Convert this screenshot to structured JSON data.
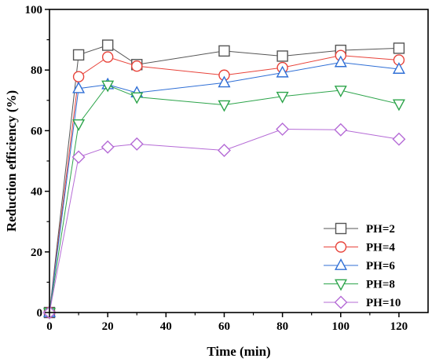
{
  "chart_data": {
    "type": "line",
    "xlabel": "Time (min)",
    "ylabel": "Reduction efficiency (%)",
    "xlim": [
      0,
      130
    ],
    "ylim": [
      0,
      100
    ],
    "xticks": [
      0,
      20,
      40,
      60,
      80,
      100,
      120
    ],
    "yticks": [
      0,
      20,
      40,
      60,
      80,
      100
    ],
    "legend_position": "bottom-right",
    "grid": false,
    "x": [
      0,
      10,
      20,
      30,
      60,
      80,
      100,
      120
    ],
    "series": [
      {
        "name": "PH=2",
        "marker": "square",
        "color": "#555555",
        "values": [
          0,
          85.0,
          88.2,
          81.8,
          86.3,
          84.6,
          86.5,
          87.2
        ]
      },
      {
        "name": "PH=4",
        "marker": "circle",
        "color": "#e8433a",
        "values": [
          0,
          77.8,
          84.3,
          81.3,
          78.3,
          80.8,
          84.8,
          83.3
        ]
      },
      {
        "name": "PH=6",
        "marker": "triangle-up",
        "color": "#2f6fd6",
        "values": [
          0,
          73.9,
          75.2,
          72.5,
          75.8,
          79.1,
          82.5,
          80.3
        ]
      },
      {
        "name": "PH=8",
        "marker": "triangle-down",
        "color": "#2ca44a",
        "values": [
          0,
          62.2,
          75.0,
          71.1,
          68.5,
          71.3,
          73.3,
          68.8
        ]
      },
      {
        "name": "PH=10",
        "marker": "diamond",
        "color": "#b56bd6",
        "values": [
          0,
          51.3,
          54.6,
          55.6,
          53.5,
          60.5,
          60.3,
          57.2
        ]
      }
    ]
  }
}
